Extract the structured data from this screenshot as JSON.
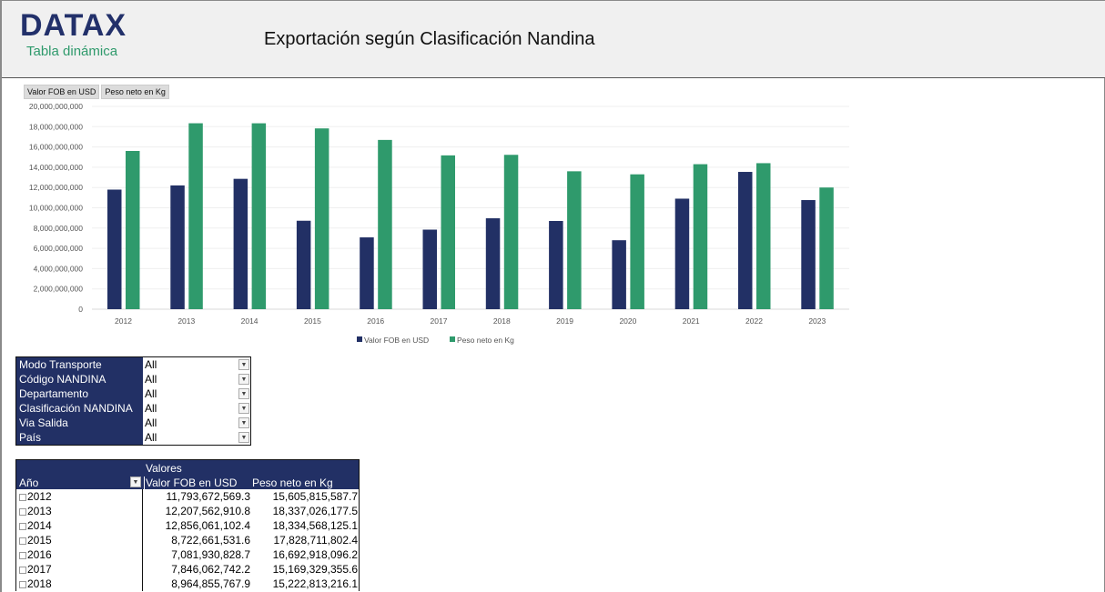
{
  "header": {
    "logo": "DATAX",
    "subtitle": "Tabla dinámica",
    "title": "Exportación según Clasificación Nandina"
  },
  "field_buttons": [
    "Valor FOB en USD",
    "Peso neto en Kg"
  ],
  "colors": {
    "fob": "#223065",
    "kg": "#2f9a6c"
  },
  "chart_data": {
    "type": "bar",
    "categories": [
      "2012",
      "2013",
      "2014",
      "2015",
      "2016",
      "2017",
      "2018",
      "2019",
      "2020",
      "2021",
      "2022",
      "2023"
    ],
    "series": [
      {
        "name": "Valor FOB en USD",
        "values": [
          11793672569.3,
          12207562910.8,
          12856061102.4,
          8722661531.6,
          7081930828.7,
          7846062742.2,
          8964855767.9,
          8700000000,
          6800000000,
          10900000000,
          13540000000,
          10760000000
        ]
      },
      {
        "name": "Peso neto en Kg",
        "values": [
          15605815587.7,
          18337026177.5,
          18334568125.1,
          17828711802.4,
          16692918096.2,
          15169329355.6,
          15222813216.1,
          13600000000,
          13300000000,
          14300000000,
          14400000000,
          12000000000
        ]
      }
    ],
    "ylim": [
      0,
      20000000000
    ],
    "yticks": [
      "0",
      "2,000,000,000",
      "4,000,000,000",
      "6,000,000,000",
      "8,000,000,000",
      "10,000,000,000",
      "12,000,000,000",
      "14,000,000,000",
      "16,000,000,000",
      "18,000,000,000",
      "20,000,000,000"
    ],
    "grid": true,
    "legend": "bottom"
  },
  "filters": [
    {
      "label": "Modo Transporte",
      "value": "All"
    },
    {
      "label": "Código NANDINA",
      "value": "All"
    },
    {
      "label": "Departamento",
      "value": "All"
    },
    {
      "label": "Clasificación NANDINA",
      "value": "All"
    },
    {
      "label": "Via Salida",
      "value": "All"
    },
    {
      "label": "País",
      "value": "All"
    }
  ],
  "pivot": {
    "values_label": "Valores",
    "row_header": "Año",
    "col1": "Valor FOB en USD",
    "col2": "Peso neto en Kg",
    "rows": [
      [
        "2012",
        "11,793,672,569.3",
        "15,605,815,587.7"
      ],
      [
        "2013",
        "12,207,562,910.8",
        "18,337,026,177.5"
      ],
      [
        "2014",
        "12,856,061,102.4",
        "18,334,568,125.1"
      ],
      [
        "2015",
        "8,722,661,531.6",
        "17,828,711,802.4"
      ],
      [
        "2016",
        "7,081,930,828.7",
        "16,692,918,096.2"
      ],
      [
        "2017",
        "7,846,062,742.2",
        "15,169,329,355.6"
      ],
      [
        "2018",
        "8,964,855,767.9",
        "15,222,813,216.1"
      ]
    ]
  }
}
